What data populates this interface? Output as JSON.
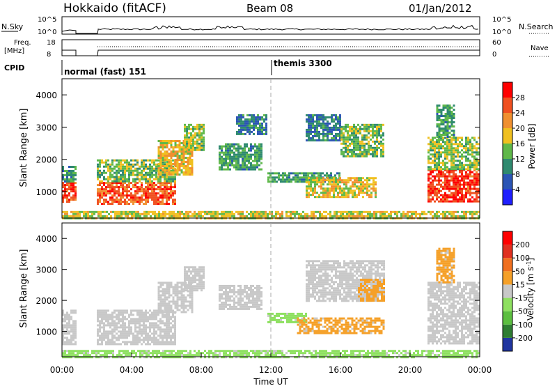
{
  "header": {
    "title": "Hokkaido (fitACF)",
    "beam": "Beam 08",
    "date": "01/Jan/2012"
  },
  "noise_panel": {
    "left_label": "N.Sky",
    "right_label": "N.Search",
    "left_ticks": [
      "10^5",
      "10^0"
    ],
    "right_ticks": [
      "10^5",
      "10^0"
    ]
  },
  "freq_panel": {
    "left_label_1": "Freq.",
    "left_label_2": "[MHz]",
    "right_label": "Nave",
    "left_ticks": [
      "18",
      "8"
    ],
    "right_ticks": [
      "60",
      "0"
    ]
  },
  "cpid_panel": {
    "label": "CPID",
    "mode_1": "normal (fast) 151",
    "mode_2": "themis 3300"
  },
  "chart_data": [
    {
      "type": "heatmap",
      "title": "Power",
      "ylabel": "Slant Range [km]",
      "yticks": [
        "1000",
        "2000",
        "3000",
        "4000"
      ],
      "ylim": [
        180,
        4500
      ],
      "xlim_hours": [
        0,
        24
      ],
      "colorbar_label": "Power [dB]",
      "colorbar_ticks": [
        "4",
        "8",
        "12",
        "16",
        "20",
        "24",
        "28"
      ],
      "colorbar_range": [
        0,
        30
      ],
      "colors": [
        "#1f1fff",
        "#2b55b5",
        "#2f8a6f",
        "#5fb84a",
        "#f0c020",
        "#f09030",
        "#f05020",
        "#ff0000"
      ],
      "regions": [
        {
          "t": [
            0.0,
            0.75
          ],
          "r": [
            700,
            1300
          ],
          "p": 25
        },
        {
          "t": [
            0.0,
            0.75
          ],
          "r": [
            1300,
            1800
          ],
          "p": 10
        },
        {
          "t": [
            2.0,
            6.5
          ],
          "r": [
            650,
            1300
          ],
          "p": 24
        },
        {
          "t": [
            2.0,
            6.5
          ],
          "r": [
            1300,
            2000
          ],
          "p": 13
        },
        {
          "t": [
            5.5,
            7.5
          ],
          "r": [
            1500,
            2600
          ],
          "p": 18
        },
        {
          "t": [
            7.0,
            8.2
          ],
          "r": [
            2300,
            3100
          ],
          "p": 14
        },
        {
          "t": [
            9.0,
            11.5
          ],
          "r": [
            1700,
            2500
          ],
          "p": 11
        },
        {
          "t": [
            10.0,
            11.7
          ],
          "r": [
            2800,
            3400
          ],
          "p": 8
        },
        {
          "t": [
            11.8,
            16.0
          ],
          "r": [
            1300,
            1600
          ],
          "p": 11
        },
        {
          "t": [
            14.0,
            18.0
          ],
          "r": [
            850,
            1450
          ],
          "p": 17
        },
        {
          "t": [
            14.0,
            16.0
          ],
          "r": [
            2600,
            3400
          ],
          "p": 8
        },
        {
          "t": [
            16.0,
            18.5
          ],
          "r": [
            2100,
            3100
          ],
          "p": 13
        },
        {
          "t": [
            21.0,
            24.0
          ],
          "r": [
            700,
            1700
          ],
          "p": 26
        },
        {
          "t": [
            21.0,
            24.0
          ],
          "r": [
            1700,
            2700
          ],
          "p": 14
        },
        {
          "t": [
            21.5,
            22.5
          ],
          "r": [
            2700,
            3700
          ],
          "p": 11
        },
        {
          "t": [
            0.0,
            24.0
          ],
          "r": [
            180,
            400
          ],
          "p": 16
        }
      ]
    },
    {
      "type": "heatmap",
      "title": "Velocity",
      "ylabel": "Slant Range [km]",
      "xlabel": "Time UT",
      "xticks": [
        "00:00",
        "04:00",
        "08:00",
        "12:00",
        "16:00",
        "20:00",
        "00:00"
      ],
      "yticks": [
        "1000",
        "2000",
        "3000",
        "4000"
      ],
      "ylim": [
        180,
        4500
      ],
      "xlim_hours": [
        0,
        24
      ],
      "colorbar_ticks": [
        "200",
        "100",
        "50",
        "15",
        "-15",
        "-50",
        "-100",
        "-200"
      ],
      "colorbar_range": [
        -250,
        250
      ],
      "colors": [
        "#2035a0",
        "#2e7d32",
        "#5cbf40",
        "#8ee060",
        "#c8c8c8",
        "#f5a028",
        "#f07020",
        "#e03020",
        "#ff0000"
      ],
      "regions": [
        {
          "t": [
            0.0,
            0.75
          ],
          "r": [
            600,
            1700
          ],
          "v": 0
        },
        {
          "t": [
            2.0,
            6.5
          ],
          "r": [
            600,
            1700
          ],
          "v": 0
        },
        {
          "t": [
            5.5,
            7.5
          ],
          "r": [
            1600,
            2600
          ],
          "v": 0
        },
        {
          "t": [
            7.0,
            8.2
          ],
          "r": [
            2300,
            3100
          ],
          "v": 0
        },
        {
          "t": [
            9.0,
            11.5
          ],
          "r": [
            1700,
            2500
          ],
          "v": 0
        },
        {
          "t": [
            11.8,
            14.0
          ],
          "r": [
            1300,
            1600
          ],
          "v": -40
        },
        {
          "t": [
            13.5,
            18.5
          ],
          "r": [
            950,
            1450
          ],
          "v": 40
        },
        {
          "t": [
            14.0,
            18.5
          ],
          "r": [
            2000,
            3300
          ],
          "v": 0
        },
        {
          "t": [
            17.0,
            18.5
          ],
          "r": [
            2000,
            2700
          ],
          "v": 40
        },
        {
          "t": [
            21.0,
            24.0
          ],
          "r": [
            600,
            2600
          ],
          "v": 0
        },
        {
          "t": [
            21.5,
            22.5
          ],
          "r": [
            2600,
            3700
          ],
          "v": 40
        },
        {
          "t": [
            0.0,
            24.0
          ],
          "r": [
            180,
            400
          ],
          "v": -40
        }
      ]
    }
  ]
}
